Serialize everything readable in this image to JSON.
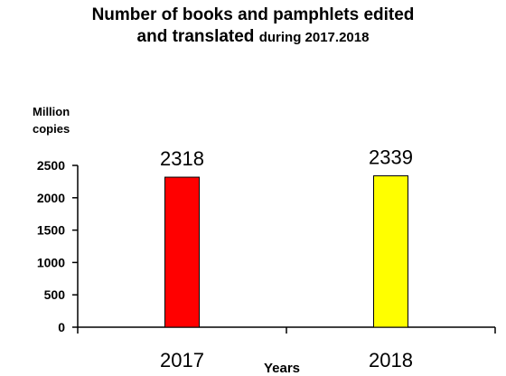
{
  "title_line1": "Number of books and pamphlets edited",
  "title_line2_main": "and translated",
  "title_line2_small": "during 2017.2018",
  "unit_label_1": "Million",
  "unit_label_2": "copies",
  "chart_data": {
    "type": "bar",
    "title": "Number of books and pamphlets edited and translated during 2017.2018",
    "xlabel": "Years",
    "ylabel": "Million copies",
    "categories": [
      "2017",
      "2018"
    ],
    "values": [
      2318,
      2339
    ],
    "data_labels": [
      "2318",
      "2339"
    ],
    "bar_colors": [
      "#ff0000",
      "#ffff00"
    ],
    "ylim": [
      0,
      2500
    ],
    "yticks": [
      0,
      500,
      1000,
      1500,
      2000,
      2500
    ],
    "grid": false,
    "legend": "none"
  }
}
